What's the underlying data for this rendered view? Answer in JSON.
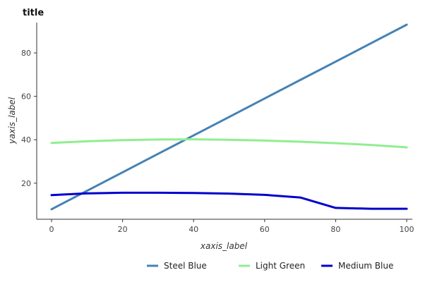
{
  "chart_data": {
    "type": "line",
    "title": "title",
    "xlabel": "xaxis_label",
    "ylabel": "yaxis_label",
    "xlim": [
      0,
      100
    ],
    "ylim": [
      5,
      93
    ],
    "x_ticks": [
      0,
      20,
      40,
      60,
      80,
      100
    ],
    "y_ticks": [
      20,
      40,
      60,
      80
    ],
    "grid": false,
    "legend_position": "bottom",
    "series": [
      {
        "name": "Steel Blue",
        "color": "#4682b4",
        "x": [
          0,
          10,
          20,
          30,
          40,
          50,
          60,
          70,
          80,
          90,
          100
        ],
        "y": [
          8,
          16.5,
          25,
          33.5,
          42,
          50.5,
          59,
          67.5,
          76,
          84.5,
          93
        ]
      },
      {
        "name": "Light Green",
        "color": "#90ee90",
        "x": [
          0,
          10,
          20,
          30,
          40,
          50,
          60,
          70,
          80,
          90,
          100
        ],
        "y": [
          38.5,
          39.3,
          39.8,
          40.1,
          40.2,
          40.0,
          39.6,
          39.1,
          38.4,
          37.6,
          36.5
        ]
      },
      {
        "name": "Medium Blue",
        "color": "#0000cd",
        "x": [
          0,
          10,
          20,
          30,
          40,
          50,
          60,
          70,
          80,
          90,
          100
        ],
        "y": [
          14.5,
          15.3,
          15.6,
          15.6,
          15.5,
          15.2,
          14.6,
          13.4,
          8.6,
          8.2,
          8.2
        ]
      }
    ]
  }
}
